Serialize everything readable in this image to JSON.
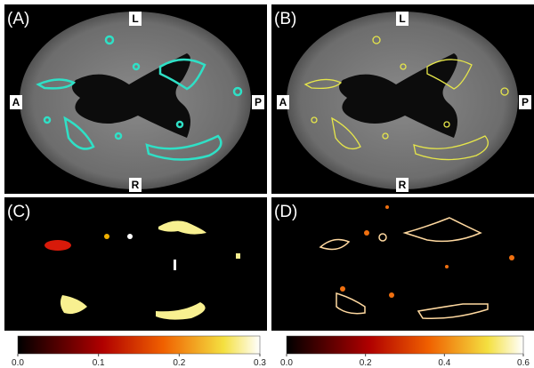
{
  "panels": [
    {
      "label": "(A)",
      "orientation": {
        "top": "L",
        "bottom": "R",
        "left": "A",
        "right": "P"
      }
    },
    {
      "label": "(B)",
      "orientation": {
        "top": "L",
        "bottom": "R",
        "left": "A",
        "right": "P"
      }
    },
    {
      "label": "(C)"
    },
    {
      "label": "(D)"
    }
  ],
  "colorbars": [
    {
      "ticks": [
        "0.0",
        "0.1",
        "0.2",
        "0.3"
      ]
    },
    {
      "ticks": [
        "0.0",
        "0.2",
        "0.4",
        "0.6"
      ]
    }
  ]
}
